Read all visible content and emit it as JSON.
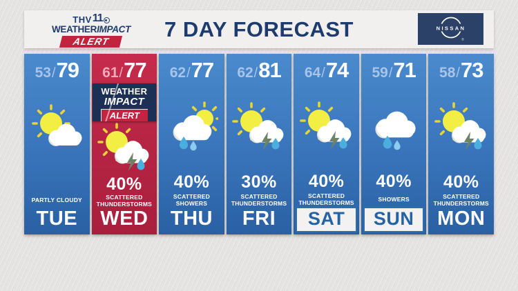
{
  "header": {
    "title": "7 DAY FORECAST",
    "logo": {
      "thv": "THV",
      "eleven": "11",
      "weather": "WEATHER",
      "impact": "IMPACT",
      "alert": "ALERT"
    },
    "sponsor": "NISSAN",
    "sponsor_reg": "®"
  },
  "alert_badge": {
    "line1": "WEATHER",
    "line2": "IMPACT",
    "line3": "ALERT"
  },
  "temp_separator": "/",
  "days": [
    {
      "day": "TUE",
      "low": "53",
      "high": "79",
      "icon": "partly-cloudy",
      "pct": "",
      "condition": "PARTLY CLOUDY",
      "theme": "blue",
      "weekend": false,
      "alert": false
    },
    {
      "day": "WED",
      "low": "61",
      "high": "77",
      "icon": "scattered-thunderstorms",
      "pct": "40%",
      "condition": "SCATTERED THUNDERSTORMS",
      "theme": "red",
      "weekend": false,
      "alert": true
    },
    {
      "day": "THU",
      "low": "62",
      "high": "77",
      "icon": "scattered-showers",
      "pct": "40%",
      "condition": "SCATTERED SHOWERS",
      "theme": "blue",
      "weekend": false,
      "alert": false
    },
    {
      "day": "FRI",
      "low": "62",
      "high": "81",
      "icon": "scattered-thunderstorms",
      "pct": "30%",
      "condition": "SCATTERED THUNDERSTORMS",
      "theme": "blue",
      "weekend": false,
      "alert": false
    },
    {
      "day": "SAT",
      "low": "64",
      "high": "74",
      "icon": "scattered-thunderstorms",
      "pct": "40%",
      "condition": "SCATTERED THUNDERSTORMS",
      "theme": "blue",
      "weekend": true,
      "alert": false
    },
    {
      "day": "SUN",
      "low": "59",
      "high": "71",
      "icon": "showers",
      "pct": "40%",
      "condition": "SHOWERS",
      "theme": "blue",
      "weekend": true,
      "alert": false
    },
    {
      "day": "MON",
      "low": "58",
      "high": "73",
      "icon": "scattered-thunderstorms",
      "pct": "40%",
      "condition": "SCATTERED THUNDERSTORMS",
      "theme": "blue",
      "weekend": false,
      "alert": false
    }
  ],
  "colors": {
    "navy": "#1d3b6d",
    "alert_red": "#c22442",
    "column_blue_top": "#4a8acd",
    "column_blue_bottom": "#2a60a4",
    "column_red_top": "#c62b4c",
    "column_red_bottom": "#a81f3d",
    "sun": "#f3ee44",
    "sun_rays": "#e8d438",
    "cloud": "#ffffff",
    "raindrop": "#4aaede",
    "lightning": "#6d8366",
    "weekend_text": "#2463a6"
  }
}
